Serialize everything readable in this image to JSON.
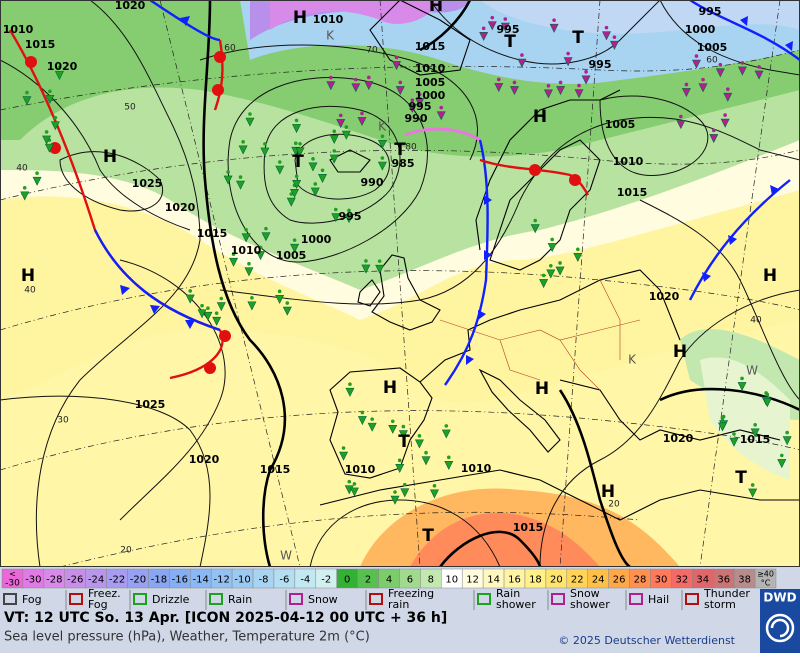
{
  "map": {
    "isobar_labels": [
      "1020",
      "1010",
      "1015",
      "1020",
      "1025",
      "1020",
      "1015",
      "1010",
      "1005",
      "1000",
      "995",
      "990",
      "985",
      "1010",
      "1015",
      "1010",
      "1005",
      "1000",
      "995",
      "990",
      "995",
      "995",
      "1000",
      "1005",
      "995",
      "1005",
      "1010",
      "1015",
      "1020",
      "1025",
      "1020",
      "1015",
      "1010",
      "1010",
      "1020",
      "1015",
      "1015"
    ],
    "centers": [
      "H",
      "H",
      "T",
      "T",
      "H",
      "T",
      "T",
      "H",
      "H",
      "H",
      "H",
      "H",
      "H",
      "T",
      "H",
      "T",
      "T",
      "K",
      "K",
      "K",
      "W",
      "W"
    ],
    "grid_labels": [
      "60",
      "50",
      "40",
      "40",
      "30",
      "20",
      "70",
      "80",
      "60",
      "40",
      "20"
    ]
  },
  "temperature_scale": {
    "low_label": [
      "<",
      "-30"
    ],
    "values": [
      -30,
      -28,
      -26,
      -24,
      -22,
      -20,
      -18,
      -16,
      -14,
      -12,
      -10,
      -8,
      -6,
      -4,
      -2,
      0,
      2,
      4,
      6,
      8,
      10,
      12,
      14,
      16,
      18,
      20,
      22,
      24,
      26,
      28,
      30,
      32,
      34,
      36,
      38
    ],
    "colors": [
      "#e27ae6",
      "#d88ae8",
      "#c98ee8",
      "#b896ec",
      "#a89cf0",
      "#98a0f2",
      "#8aa6f2",
      "#86aef2",
      "#8ab8f2",
      "#92c2f2",
      "#9ccaf2",
      "#a8d4f2",
      "#b4def2",
      "#c2e8f2",
      "#d2f0f0",
      "#34b034",
      "#58c050",
      "#7ccc6c",
      "#a0da8e",
      "#c2e8b0",
      "#ffffff",
      "#fffce0",
      "#fff8c0",
      "#fff4a4",
      "#fff088",
      "#ffe470",
      "#ffd458",
      "#ffc048",
      "#ffa848",
      "#ff9050",
      "#ff7a5a",
      "#f46a66",
      "#e0666a",
      "#cc7474",
      "#b88c8c"
    ],
    "low_color": "#e868d8",
    "high_label": [
      "≥40",
      "°C"
    ],
    "high_color": "#b4b4b4"
  },
  "weather_legend": [
    [
      "Fog"
    ],
    [
      "Freez.",
      "Fog"
    ],
    [
      "Drizzle"
    ],
    [
      "Rain"
    ],
    [
      "Snow"
    ],
    [
      "Freezing",
      "rain"
    ],
    [
      "Rain",
      "shower"
    ],
    [
      "Snow",
      "shower"
    ],
    [
      "Hail"
    ],
    [
      "Thunder",
      "storm"
    ]
  ],
  "footer": {
    "valid_time": "VT: 12 UTC So.  13 Apr. [ICON 2025-04-12  00 UTC + 36 h]",
    "description": "Sea level pressure (hPa), Weather, Temperature 2m (°C)",
    "copyright": "© 2025 Deutscher Wetterdienst",
    "logo": "DWD"
  }
}
